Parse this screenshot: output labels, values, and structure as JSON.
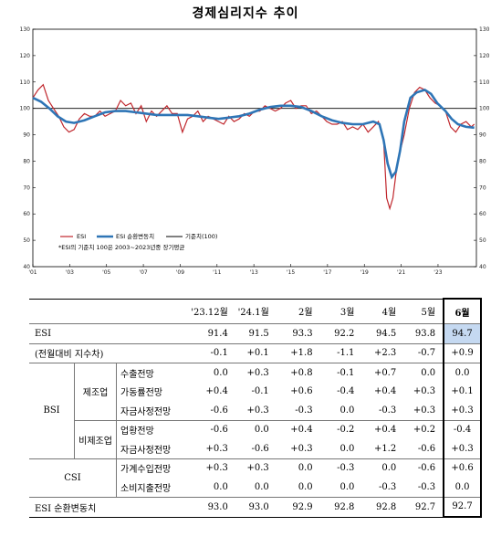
{
  "chart_data": {
    "type": "line",
    "title": "경제심리지수 추이",
    "y_ticks": [
      "130",
      "120",
      "110",
      "100",
      "90",
      "80",
      "70",
      "60",
      "50",
      "40"
    ],
    "x_ticks": [
      "'01",
      "'03",
      "'05",
      "'07",
      "'09",
      "'11",
      "'13",
      "'15",
      "'17",
      "'19",
      "'21",
      "'23"
    ],
    "x_ticks_raw": [
      "'01",
      "'03",
      "'05",
      "'07",
      "'09",
      "'11",
      "'13",
      "'15",
      "'17",
      "'19",
      "'21",
      "'23"
    ],
    "ylim": [
      40,
      130
    ],
    "x_range": [
      2003,
      2024.5
    ],
    "baseline": 100,
    "series": [
      {
        "name": "ESI",
        "color": "#c0272d",
        "x": [
          2003.0,
          2003.25,
          2003.5,
          2003.75,
          2004.0,
          2004.25,
          2004.5,
          2004.75,
          2005.0,
          2005.25,
          2005.5,
          2005.75,
          2006.0,
          2006.25,
          2006.5,
          2006.75,
          2007.0,
          2007.25,
          2007.5,
          2007.75,
          2008.0,
          2008.25,
          2008.5,
          2008.75,
          2009.0,
          2009.25,
          2009.5,
          2009.75,
          2010.0,
          2010.25,
          2010.5,
          2010.75,
          2011.0,
          2011.25,
          2011.5,
          2011.75,
          2012.0,
          2012.25,
          2012.5,
          2012.75,
          2013.0,
          2013.25,
          2013.5,
          2013.75,
          2014.0,
          2014.25,
          2014.5,
          2014.75,
          2015.0,
          2015.25,
          2015.5,
          2015.75,
          2016.0,
          2016.25,
          2016.5,
          2016.75,
          2017.0,
          2017.25,
          2017.5,
          2017.75,
          2018.0,
          2018.25,
          2018.5,
          2018.75,
          2019.0,
          2019.25,
          2019.5,
          2019.75,
          2020.0,
          2020.15,
          2020.3,
          2020.45,
          2020.6,
          2020.75,
          2021.0,
          2021.25,
          2021.5,
          2021.75,
          2022.0,
          2022.25,
          2022.5,
          2022.75,
          2023.0,
          2023.25,
          2023.5,
          2023.75,
          2024.0,
          2024.25,
          2024.4
        ],
        "values": [
          104,
          107,
          109,
          103,
          100,
          97,
          93,
          91,
          92,
          96,
          98,
          97,
          97,
          99,
          97,
          98,
          99,
          103,
          101,
          102,
          98,
          101,
          95,
          99,
          97,
          99,
          101,
          98,
          98,
          91,
          96,
          97,
          99,
          95,
          97,
          96,
          95,
          94,
          97,
          95,
          96,
          98,
          97,
          99,
          99,
          101,
          100,
          99,
          100,
          102,
          103,
          100,
          101,
          101,
          98,
          99,
          97,
          95,
          94,
          94,
          95,
          92,
          93,
          92,
          94,
          91,
          93,
          95,
          88,
          66,
          62,
          66,
          75,
          82,
          90,
          100,
          106,
          108,
          107,
          104,
          102,
          101,
          99,
          93,
          91,
          94,
          95,
          93,
          94
        ]
      },
      {
        "name": "ESI 순환변동치",
        "color": "#2e75b6",
        "x": [
          2003.0,
          2003.4,
          2003.8,
          2004.2,
          2004.6,
          2005.0,
          2005.5,
          2006.0,
          2006.5,
          2007.0,
          2007.5,
          2008.0,
          2008.5,
          2009.0,
          2009.5,
          2010.0,
          2010.5,
          2011.0,
          2011.5,
          2012.0,
          2012.5,
          2013.0,
          2013.5,
          2014.0,
          2014.5,
          2015.0,
          2015.5,
          2016.0,
          2016.5,
          2017.0,
          2017.5,
          2018.0,
          2018.5,
          2019.0,
          2019.5,
          2019.8,
          2020.0,
          2020.2,
          2020.4,
          2020.6,
          2020.8,
          2021.0,
          2021.3,
          2021.6,
          2022.0,
          2022.3,
          2022.6,
          2023.0,
          2023.3,
          2023.6,
          2024.0,
          2024.4
        ],
        "values": [
          104,
          102.5,
          100,
          97,
          95,
          94.5,
          95.5,
          97,
          98.5,
          99,
          99,
          98.5,
          98,
          97.5,
          97.5,
          97.5,
          97.5,
          97,
          96.5,
          96,
          96.5,
          97,
          98,
          99.5,
          100.5,
          101,
          101,
          100.5,
          99,
          97,
          95.5,
          94.5,
          94,
          94,
          95,
          94,
          88,
          79,
          74,
          76,
          84,
          95,
          104,
          106,
          107,
          105.5,
          102,
          99,
          96,
          94,
          93,
          92.7
        ]
      },
      {
        "name": "기준치(100)",
        "color": "#000000"
      }
    ],
    "note": "*ESI의 기준치 100은 2003~2023년중 장기평균"
  },
  "table": {
    "headers": [
      "'23.12월",
      "'24.1월",
      "2월",
      "3월",
      "4월",
      "5월",
      "6월"
    ],
    "rows": {
      "esi": {
        "label": "ESI",
        "values": [
          "91.4",
          "91.5",
          "93.3",
          "92.2",
          "94.5",
          "93.8",
          "94.7"
        ]
      },
      "esi_diff": {
        "label": "(전월대비 지수차)",
        "values": [
          "-0.1",
          "+0.1",
          "+1.8",
          "-1.1",
          "+2.3",
          "-0.7",
          "+0.9"
        ]
      },
      "bsi_label": "BSI",
      "mfg_label": "제조업",
      "nonmfg_label": "비제조업",
      "csi_label": "CSI",
      "mfg_export": {
        "label": "수출전망",
        "values": [
          "0.0",
          "+0.3",
          "+0.8",
          "-0.1",
          "+0.7",
          "0.0",
          "0.0"
        ]
      },
      "mfg_util": {
        "label": "가동률전망",
        "values": [
          "+0.4",
          "-0.1",
          "+0.6",
          "-0.4",
          "+0.4",
          "+0.3",
          "+0.1"
        ]
      },
      "mfg_fund": {
        "label": "자금사정전망",
        "values": [
          "-0.6",
          "+0.3",
          "-0.3",
          "0.0",
          "-0.3",
          "+0.3",
          "+0.3"
        ]
      },
      "non_biz": {
        "label": "업황전망",
        "values": [
          "-0.6",
          "0.0",
          "+0.4",
          "-0.2",
          "+0.4",
          "+0.2",
          "-0.4"
        ]
      },
      "non_fund": {
        "label": "자금사정전망",
        "values": [
          "+0.3",
          "-0.6",
          "+0.3",
          "0.0",
          "+1.2",
          "-0.6",
          "+0.3"
        ]
      },
      "csi_income": {
        "label": "가계수입전망",
        "values": [
          "+0.3",
          "+0.3",
          "0.0",
          "-0.3",
          "0.0",
          "-0.6",
          "+0.6"
        ]
      },
      "csi_spend": {
        "label": "소비지출전망",
        "values": [
          "0.0",
          "0.0",
          "0.0",
          "0.0",
          "-0.3",
          "-0.3",
          "0.0"
        ]
      },
      "esi_cycle": {
        "label": "ESI 순환변동치",
        "values": [
          "93.0",
          "93.0",
          "92.9",
          "92.8",
          "92.8",
          "92.7",
          "92.7"
        ]
      }
    }
  }
}
